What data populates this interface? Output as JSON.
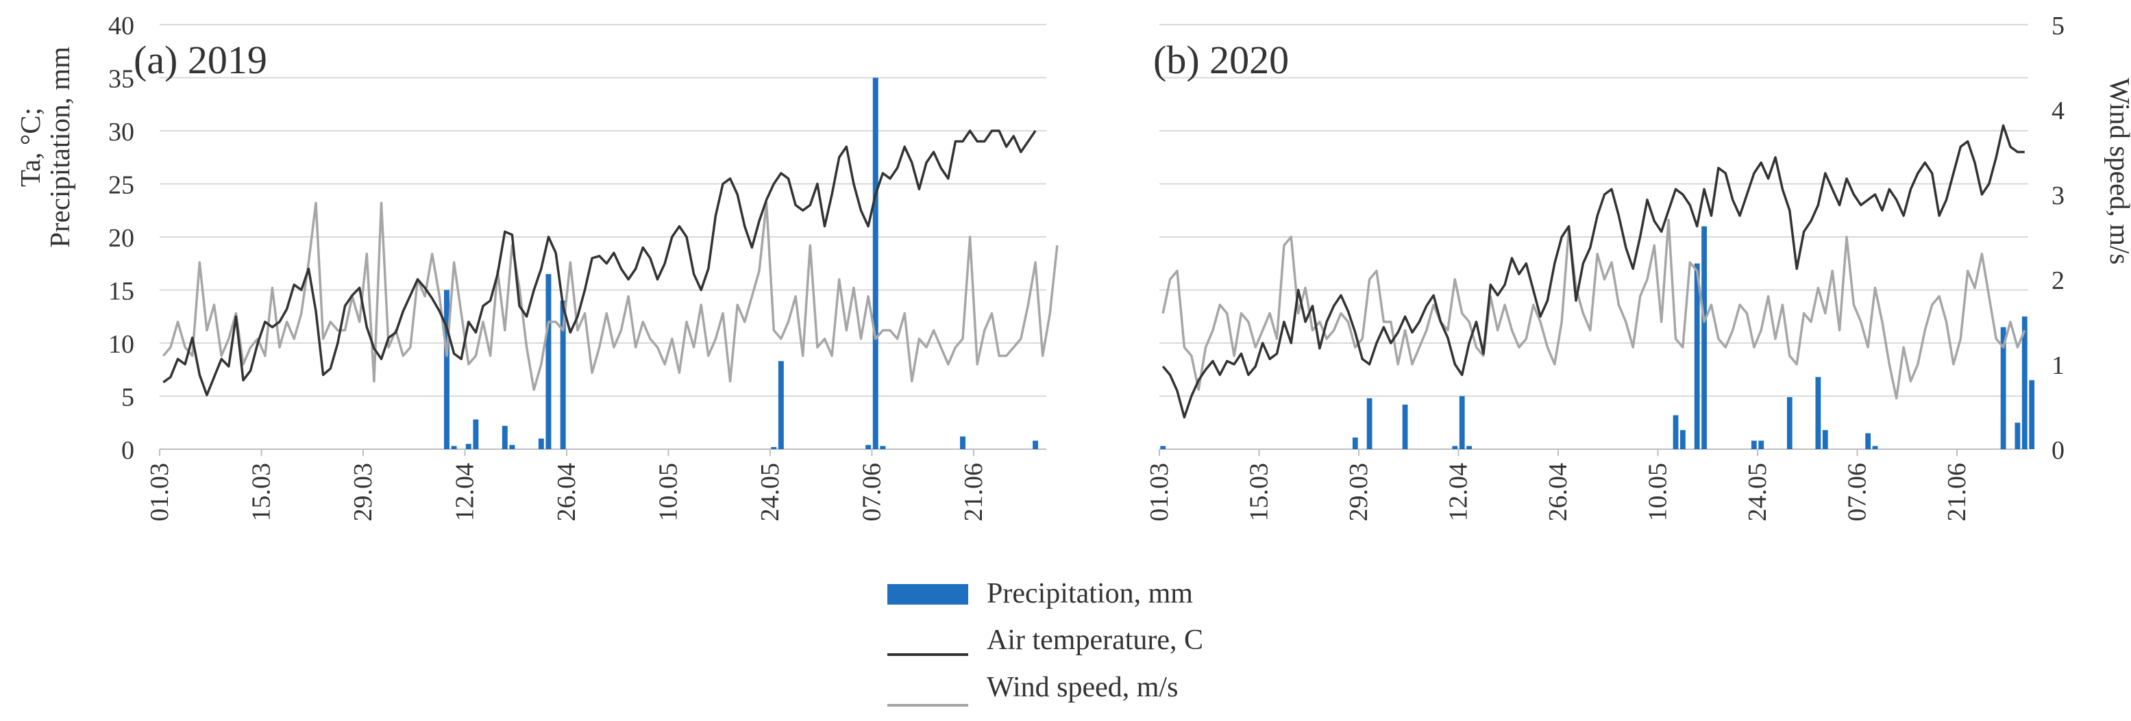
{
  "colors": {
    "precipitation": "#1f6fbf",
    "air_temperature": "#333333",
    "wind_speed": "#a6a6a6",
    "grid": "#d9d9d9",
    "axis_text": "#333333"
  },
  "left_axis": {
    "label_line1": "Ta, °C;",
    "label_line2": "Precipitation, mm",
    "ticks": [
      "0",
      "5",
      "10",
      "15",
      "20",
      "25",
      "30",
      "35",
      "40"
    ]
  },
  "right_axis": {
    "label": "Wind speed, m/s",
    "ticks": [
      "0",
      "1",
      "2",
      "3",
      "4",
      "5"
    ]
  },
  "legend": {
    "precipitation": "Precipitation, mm",
    "air_temperature": "Air temperature, C",
    "wind_speed": "Wind speed, m/s"
  },
  "chart_data": [
    {
      "type": "line",
      "title": "(a) 2019",
      "x_tick_labels": [
        "01.03",
        "15.03",
        "29.03",
        "12.04",
        "26.04",
        "10.05",
        "24.05",
        "07.06",
        "21.06"
      ],
      "x_tick_days": [
        0,
        14,
        28,
        42,
        56,
        70,
        84,
        98,
        112
      ],
      "days": 122,
      "ylim_left": [
        0,
        40
      ],
      "ylim_right": [
        0,
        5
      ],
      "ylabel_left": "Ta, °C; Precipitation, mm",
      "ylabel_right": "Wind speed, m/s",
      "air_temperature": [
        6.3,
        6.8,
        8.5,
        8.0,
        10.5,
        7.0,
        5.1,
        6.8,
        8.5,
        7.8,
        12.5,
        6.5,
        7.4,
        10.0,
        12.0,
        11.5,
        12.0,
        13.2,
        15.5,
        15.0,
        17.0,
        13.0,
        7.0,
        7.6,
        10.0,
        13.5,
        14.5,
        15.2,
        11.5,
        9.5,
        8.5,
        10.5,
        11.0,
        13.0,
        14.5,
        16.0,
        15.2,
        14.2,
        13.0,
        11.5,
        9.0,
        8.5,
        12.0,
        11.0,
        13.5,
        14.0,
        16.5,
        20.5,
        20.2,
        13.5,
        12.5,
        15.0,
        17.0,
        20.0,
        18.5,
        13.5,
        11.0,
        12.5,
        15.0,
        18.0,
        18.2,
        17.5,
        18.5,
        17.0,
        16.0,
        17.0,
        19.0,
        18.0,
        16.0,
        17.5,
        20.0,
        21.0,
        20.0,
        16.5,
        15.0,
        17.0,
        22.0,
        25.0,
        25.5,
        24.0,
        21.0,
        19.0,
        21.5,
        23.5,
        25.0,
        26.0,
        25.5,
        23.0,
        22.5,
        23.0,
        25.0,
        21.0,
        24.0,
        27.5,
        28.5,
        25.0,
        22.5,
        21.0,
        24.0,
        26.0,
        25.5,
        26.5,
        28.5,
        27.0,
        24.5,
        27.0,
        28.0,
        26.5,
        25.5,
        29.0,
        29.0,
        30.0,
        29.0,
        29.0,
        30.0,
        30.0,
        28.5,
        29.5,
        28.0,
        29.0,
        30.0
      ],
      "wind_speed": [
        1.1,
        1.2,
        1.5,
        1.2,
        1.1,
        2.2,
        1.4,
        1.7,
        1.1,
        1.3,
        1.6,
        1.0,
        1.2,
        1.3,
        1.1,
        1.9,
        1.2,
        1.5,
        1.3,
        1.6,
        2.2,
        2.9,
        1.3,
        1.5,
        1.4,
        1.4,
        1.8,
        1.5,
        2.3,
        0.8,
        2.9,
        1.2,
        1.4,
        1.1,
        1.2,
        2.0,
        1.8,
        2.3,
        1.8,
        1.1,
        2.2,
        1.6,
        1.0,
        1.1,
        1.5,
        1.1,
        2.1,
        1.4,
        2.4,
        1.9,
        1.2,
        0.7,
        1.0,
        1.5,
        1.5,
        1.4,
        2.2,
        1.4,
        1.6,
        0.9,
        1.2,
        1.6,
        1.2,
        1.4,
        1.8,
        1.2,
        1.5,
        1.3,
        1.2,
        1.0,
        1.3,
        0.9,
        1.5,
        1.2,
        1.7,
        1.1,
        1.3,
        1.6,
        0.8,
        1.7,
        1.5,
        1.8,
        2.1,
        2.9,
        1.4,
        1.3,
        1.5,
        1.8,
        1.1,
        2.4,
        1.2,
        1.3,
        1.1,
        2.0,
        1.4,
        1.9,
        1.3,
        1.8,
        1.3,
        1.4,
        1.4,
        1.3,
        1.6,
        0.8,
        1.3,
        1.2,
        1.4,
        1.2,
        1.0,
        1.2,
        1.3,
        2.5,
        1.0,
        1.4,
        1.6,
        1.1,
        1.1,
        1.2,
        1.3,
        1.7,
        2.2,
        1.1,
        1.6,
        2.4
      ],
      "precipitation": [
        [
          39,
          15.0
        ],
        [
          40,
          0.3
        ],
        [
          42,
          0.5
        ],
        [
          43,
          2.8
        ],
        [
          47,
          2.2
        ],
        [
          48,
          0.4
        ],
        [
          52,
          1.0
        ],
        [
          53,
          16.5
        ],
        [
          55,
          14.0
        ],
        [
          84,
          0.2
        ],
        [
          85,
          8.3
        ],
        [
          97,
          0.4
        ],
        [
          98,
          35.0
        ],
        [
          99,
          0.3
        ],
        [
          110,
          1.2
        ],
        [
          120,
          0.8
        ]
      ]
    },
    {
      "type": "line",
      "title": "(b) 2020",
      "x_tick_labels": [
        "01.03",
        "15.03",
        "29.03",
        "12.04",
        "26.04",
        "10.05",
        "24.05",
        "07.06",
        "21.06"
      ],
      "x_tick_days": [
        0,
        14,
        28,
        42,
        56,
        70,
        84,
        98,
        112
      ],
      "days": 122,
      "ylim_left": [
        0,
        40
      ],
      "ylim_right": [
        0,
        5
      ],
      "ylabel_left": "Ta, °C; Precipitation, mm",
      "ylabel_right": "Wind speed, m/s",
      "air_temperature": [
        7.8,
        7.0,
        5.5,
        3.0,
        5.0,
        6.5,
        7.5,
        8.3,
        7.0,
        8.3,
        8.0,
        9.0,
        7.0,
        7.8,
        10.0,
        8.5,
        9.0,
        12.0,
        10.0,
        15.0,
        12.0,
        13.5,
        9.5,
        12.0,
        13.5,
        14.5,
        13.0,
        11.0,
        8.5,
        8.0,
        10.0,
        11.5,
        10.0,
        11.0,
        12.5,
        11.0,
        12.0,
        13.5,
        14.5,
        12.0,
        10.5,
        8.0,
        7.0,
        10.0,
        12.0,
        9.0,
        15.5,
        14.5,
        15.5,
        18.0,
        16.5,
        17.5,
        15.0,
        12.5,
        14.0,
        17.5,
        20.0,
        21.0,
        14.0,
        17.5,
        19.0,
        22.0,
        24.0,
        24.5,
        22.0,
        19.0,
        17.0,
        20.0,
        23.5,
        21.5,
        20.5,
        22.5,
        24.5,
        24.0,
        23.0,
        21.0,
        24.5,
        22.0,
        26.5,
        26.0,
        23.5,
        22.0,
        24.0,
        26.0,
        27.0,
        25.5,
        27.5,
        24.5,
        22.5,
        17.0,
        20.5,
        21.5,
        23.0,
        26.0,
        24.5,
        23.0,
        25.5,
        24.0,
        23.0,
        23.5,
        24.0,
        22.5,
        24.5,
        23.5,
        22.0,
        24.5,
        26.0,
        27.0,
        26.0,
        22.0,
        23.5,
        26.0,
        28.5,
        29.0,
        27.0,
        24.0,
        25.0,
        27.5,
        30.5,
        28.5,
        28.0,
        28.0
      ],
      "wind_speed": [
        1.6,
        2.0,
        2.1,
        1.2,
        1.1,
        0.7,
        1.2,
        1.4,
        1.7,
        1.6,
        1.1,
        1.6,
        1.5,
        1.2,
        1.4,
        1.6,
        1.3,
        2.4,
        2.5,
        1.6,
        1.9,
        1.4,
        1.5,
        1.3,
        1.4,
        1.6,
        1.5,
        1.2,
        1.3,
        2.0,
        2.1,
        1.5,
        1.5,
        1.0,
        1.4,
        1.0,
        1.2,
        1.4,
        1.7,
        1.5,
        1.4,
        2.0,
        1.6,
        1.5,
        1.2,
        1.1,
        1.8,
        1.4,
        1.7,
        1.4,
        1.2,
        1.3,
        1.7,
        1.5,
        1.2,
        1.0,
        1.5,
        2.6,
        1.9,
        1.6,
        1.4,
        2.3,
        2.0,
        2.2,
        1.7,
        1.5,
        1.2,
        1.8,
        2.0,
        2.4,
        1.5,
        2.7,
        1.3,
        1.2,
        2.2,
        2.1,
        1.5,
        1.7,
        1.3,
        1.2,
        1.4,
        1.7,
        1.6,
        1.2,
        1.4,
        1.8,
        1.3,
        1.7,
        1.1,
        1.0,
        1.6,
        1.5,
        1.9,
        1.6,
        2.1,
        1.4,
        2.5,
        1.7,
        1.5,
        1.2,
        1.9,
        1.5,
        1.0,
        0.6,
        1.2,
        0.8,
        1.0,
        1.4,
        1.7,
        1.8,
        1.5,
        1.0,
        1.3,
        2.1,
        1.9,
        2.3,
        1.8,
        1.3,
        1.2,
        1.5,
        1.2,
        1.4
      ],
      "precipitation": [
        [
          0,
          0.3
        ],
        [
          27,
          1.1
        ],
        [
          29,
          4.8
        ],
        [
          34,
          4.2
        ],
        [
          41,
          0.3
        ],
        [
          42,
          5.0
        ],
        [
          43,
          0.3
        ],
        [
          72,
          3.2
        ],
        [
          73,
          1.8
        ],
        [
          75,
          17.5
        ],
        [
          76,
          21.0
        ],
        [
          83,
          0.8
        ],
        [
          84,
          0.8
        ],
        [
          88,
          4.9
        ],
        [
          92,
          6.8
        ],
        [
          93,
          1.8
        ],
        [
          99,
          1.5
        ],
        [
          100,
          0.3
        ],
        [
          118,
          11.5
        ],
        [
          120,
          2.5
        ],
        [
          121,
          12.5
        ],
        [
          122,
          6.5
        ]
      ]
    }
  ]
}
